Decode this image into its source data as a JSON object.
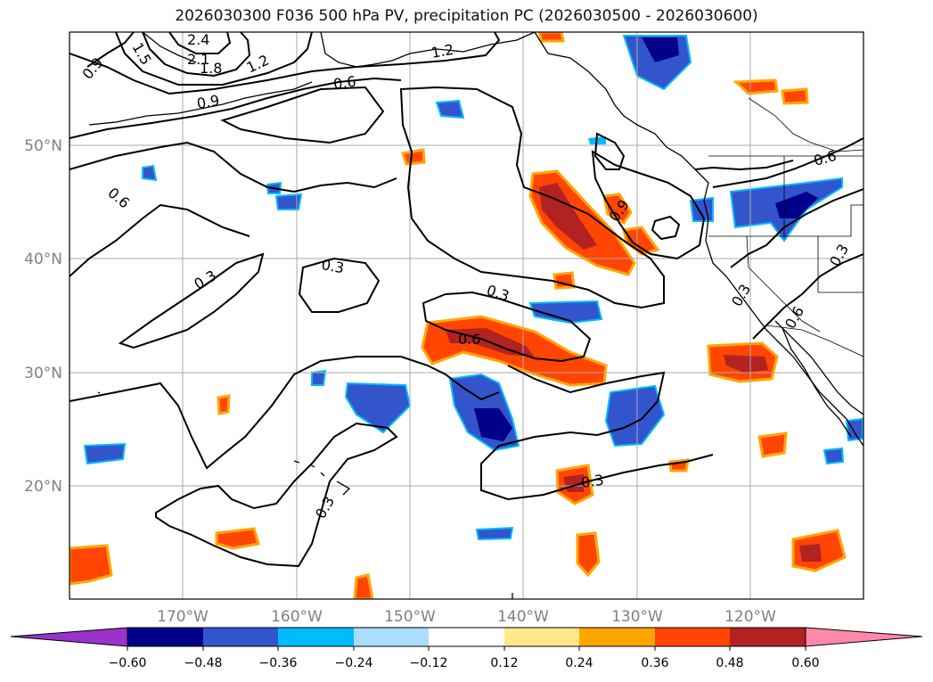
{
  "title": "2026030300 F036 500 hPa PV, precipitation PC (2026030500 - 2026030600)",
  "map": {
    "lon_range": [
      -180,
      -110
    ],
    "lat_range": [
      10,
      60
    ],
    "lon_ticks": [
      {
        "lon": -170,
        "label": "170°W"
      },
      {
        "lon": -160,
        "label": "160°W"
      },
      {
        "lon": -150,
        "label": "150°W"
      },
      {
        "lon": -140,
        "label": "140°W"
      },
      {
        "lon": -130,
        "label": "130°W"
      },
      {
        "lon": -120,
        "label": "120°W"
      }
    ],
    "lat_ticks": [
      {
        "lat": 20,
        "label": "20°N"
      },
      {
        "lat": 30,
        "label": "30°N"
      },
      {
        "lat": 40,
        "label": "40°N"
      },
      {
        "lat": 50,
        "label": "50°N"
      }
    ],
    "grid": true,
    "contour_labels": [
      "2.4",
      "2.1",
      "1.8",
      "1.5",
      "1.2",
      "1.2",
      "0.9",
      "0.9",
      "0.9",
      "0.6",
      "0.6",
      "0.6",
      "0.6",
      "0.6",
      "0.3",
      "0.3",
      "0.3",
      "0.3",
      "0.3",
      "0.3",
      "0.3"
    ]
  },
  "colorbar": {
    "ticks": [
      "−0.60",
      "−0.48",
      "−0.36",
      "−0.24",
      "−0.12",
      "0.12",
      "0.24",
      "0.36",
      "0.48",
      "0.60"
    ],
    "colors": [
      "#9933cc",
      "#00008b",
      "#3355cc",
      "#00bbff",
      "#aaddff",
      "#ffffff",
      "#ffe88a",
      "#ffa500",
      "#ff4500",
      "#b22222",
      "#ff88aa"
    ]
  }
}
